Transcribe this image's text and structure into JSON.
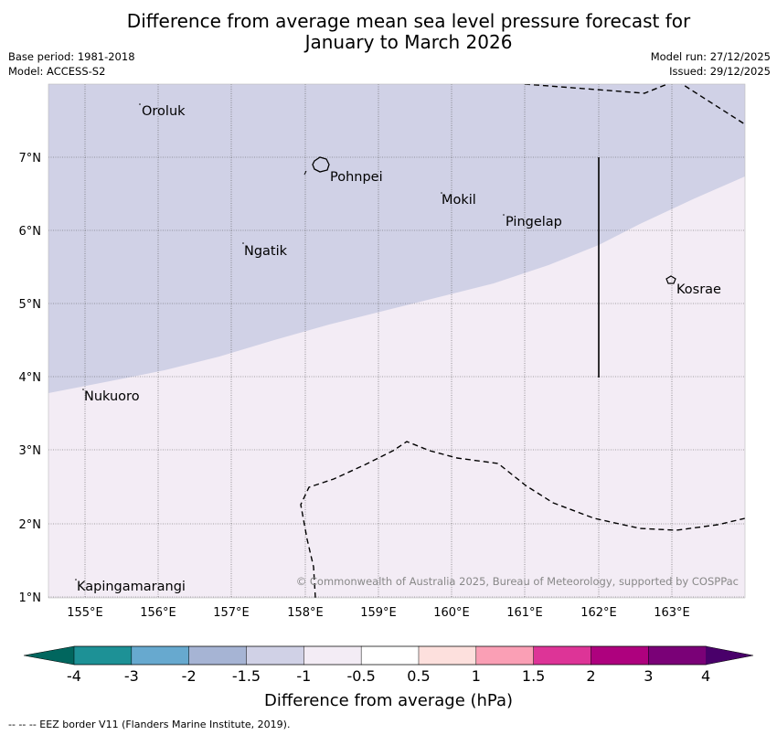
{
  "header": {
    "title_line1": "Difference from average mean sea level pressure forecast for",
    "title_line2": "January to March 2026",
    "base_period": "Base period: 1981-2018",
    "model": "Model: ACCESS-S2",
    "model_run": "Model run: 27/12/2025",
    "issued": "Issued: 29/12/2025"
  },
  "map": {
    "lon_ticks": [
      "155°E",
      "156°E",
      "157°E",
      "158°E",
      "159°E",
      "160°E",
      "161°E",
      "162°E",
      "163°E"
    ],
    "lat_ticks": [
      "7°N",
      "6°N",
      "5°N",
      "4°N",
      "3°N",
      "2°N",
      "1°N"
    ],
    "places": {
      "oroluk": "Oroluk",
      "pohnpei": "Pohnpei",
      "mokil": "Mokil",
      "pingelap": "Pingelap",
      "ngatik": "Ngatik",
      "kosrae": "Kosrae",
      "nukuoro": "Nukuoro",
      "kapingamarangi": "Kapingamarangi"
    },
    "copyright": "© Commonwealth of Australia 2025, Bureau of Meteorology, supported by COSPPac",
    "fill_colors": {
      "minus_1_to_minus_1_5": "#d0d1e6",
      "minus_0_5_to_minus_1": "#f3ecf5"
    }
  },
  "colorbar": {
    "ticks": [
      "-4",
      "-3",
      "-2",
      "-1.5",
      "-1",
      "-0.5",
      "0.5",
      "1",
      "1.5",
      "2",
      "3",
      "4"
    ],
    "colors": [
      "#01665e",
      "#1d9196",
      "#67a9cf",
      "#a6b4d4",
      "#d0d1e6",
      "#f3ecf5",
      "#ffffff",
      "#fde0dd",
      "#fa9fb5",
      "#dd3497",
      "#ae017e",
      "#7a0177",
      "#49006a"
    ],
    "label": "Difference from average (hPa)"
  },
  "footer": {
    "eez_note": "-- -- -- EEZ border V11 (Flanders Marine Institute, 2019)."
  }
}
